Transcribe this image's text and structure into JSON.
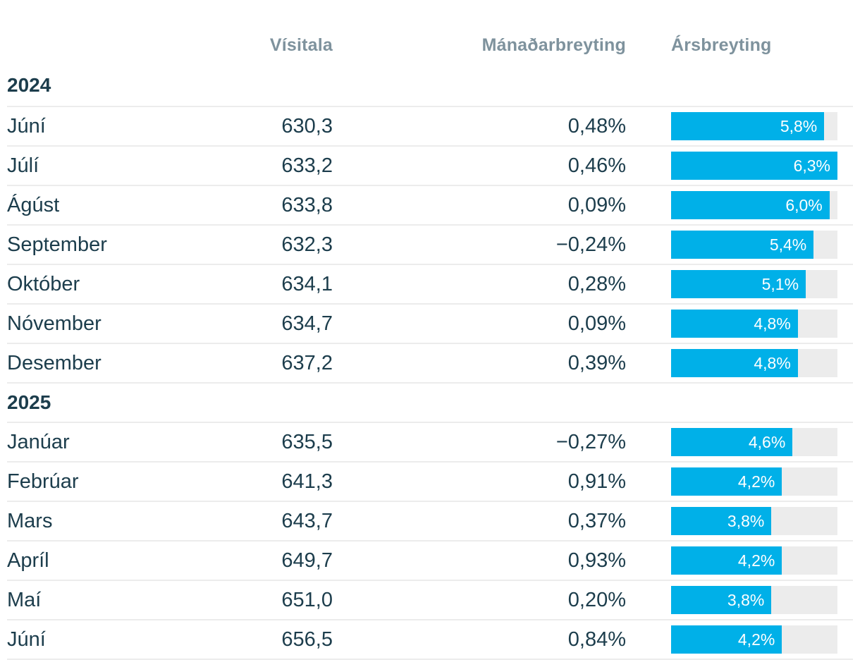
{
  "colors": {
    "bar": "#00b0e8",
    "bar_track": "#ececec",
    "text_dark": "#1c3d4c",
    "header_gray": "#7e929d",
    "separator": "#ececec"
  },
  "chart_data": {
    "type": "table",
    "columns": [
      "Vísitala",
      "Mánaðarbreyting",
      "Ársbreyting"
    ],
    "bar_column": "Ársbreyting",
    "bar_scale_max": 6.3,
    "legend_position": "none",
    "grid": "row-separators-only",
    "sections": [
      {
        "year": "2024",
        "rows": [
          {
            "month": "Júní",
            "visitala": "630,3",
            "manadarbreyting": "0,48%",
            "arsbreyting": "5,8%",
            "arsbreyting_pct": 5.8
          },
          {
            "month": "Júlí",
            "visitala": "633,2",
            "manadarbreyting": "0,46%",
            "arsbreyting": "6,3%",
            "arsbreyting_pct": 6.3
          },
          {
            "month": "Ágúst",
            "visitala": "633,8",
            "manadarbreyting": "0,09%",
            "arsbreyting": "6,0%",
            "arsbreyting_pct": 6.0
          },
          {
            "month": "September",
            "visitala": "632,3",
            "manadarbreyting": "−0,24%",
            "arsbreyting": "5,4%",
            "arsbreyting_pct": 5.4
          },
          {
            "month": "Október",
            "visitala": "634,1",
            "manadarbreyting": "0,28%",
            "arsbreyting": "5,1%",
            "arsbreyting_pct": 5.1
          },
          {
            "month": "Nóvember",
            "visitala": "634,7",
            "manadarbreyting": "0,09%",
            "arsbreyting": "4,8%",
            "arsbreyting_pct": 4.8
          },
          {
            "month": "Desember",
            "visitala": "637,2",
            "manadarbreyting": "0,39%",
            "arsbreyting": "4,8%",
            "arsbreyting_pct": 4.8
          }
        ]
      },
      {
        "year": "2025",
        "rows": [
          {
            "month": "Janúar",
            "visitala": "635,5",
            "manadarbreyting": "−0,27%",
            "arsbreyting": "4,6%",
            "arsbreyting_pct": 4.6
          },
          {
            "month": "Febrúar",
            "visitala": "641,3",
            "manadarbreyting": "0,91%",
            "arsbreyting": "4,2%",
            "arsbreyting_pct": 4.2
          },
          {
            "month": "Mars",
            "visitala": "643,7",
            "manadarbreyting": "0,37%",
            "arsbreyting": "3,8%",
            "arsbreyting_pct": 3.8
          },
          {
            "month": "Apríl",
            "visitala": "649,7",
            "manadarbreyting": "0,93%",
            "arsbreyting": "4,2%",
            "arsbreyting_pct": 4.2
          },
          {
            "month": "Maí",
            "visitala": "651,0",
            "manadarbreyting": "0,20%",
            "arsbreyting": "3,8%",
            "arsbreyting_pct": 3.8
          },
          {
            "month": "Júní",
            "visitala": "656,5",
            "manadarbreyting": "0,84%",
            "arsbreyting": "4,2%",
            "arsbreyting_pct": 4.2
          }
        ]
      }
    ]
  }
}
